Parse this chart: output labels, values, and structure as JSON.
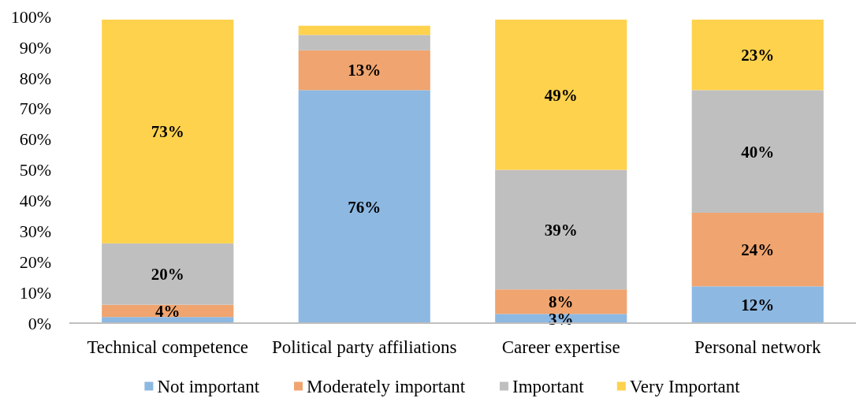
{
  "chart_data": {
    "type": "bar",
    "stacked": true,
    "categories": [
      "Technical competence",
      "Political party affiliations",
      "Career expertise",
      "Personal network"
    ],
    "series": [
      {
        "name": "Not important",
        "color": "#8db8e2",
        "values": [
          2,
          76,
          3,
          12
        ],
        "value_labels": [
          null,
          "76%",
          "3%",
          "12%"
        ]
      },
      {
        "name": "Moderately important",
        "color": "#f0a46f",
        "values": [
          4,
          13,
          8,
          24
        ],
        "value_labels": [
          "4%",
          "13%",
          "8%",
          "24%"
        ]
      },
      {
        "name": "Important",
        "color": "#bfbfbf",
        "values": [
          20,
          5,
          39,
          40
        ],
        "value_labels": [
          "20%",
          null,
          "39%",
          "40%"
        ]
      },
      {
        "name": "Very Important",
        "color": "#ffd24d",
        "values": [
          73,
          3,
          49,
          23
        ],
        "value_labels": [
          "73%",
          null,
          "49%",
          "23%"
        ]
      }
    ],
    "ylim": [
      0,
      100
    ],
    "yticks": [
      {
        "value": 0,
        "label": "0%"
      },
      {
        "value": 10,
        "label": "10%"
      },
      {
        "value": 20,
        "label": "20%"
      },
      {
        "value": 30,
        "label": "30%"
      },
      {
        "value": 40,
        "label": "40%"
      },
      {
        "value": 50,
        "label": "50%"
      },
      {
        "value": 60,
        "label": "60%"
      },
      {
        "value": 70,
        "label": "70%"
      },
      {
        "value": 80,
        "label": "80%"
      },
      {
        "value": 90,
        "label": "90%"
      },
      {
        "value": 100,
        "label": "100%"
      }
    ],
    "grid": false,
    "legend": "bottom"
  }
}
